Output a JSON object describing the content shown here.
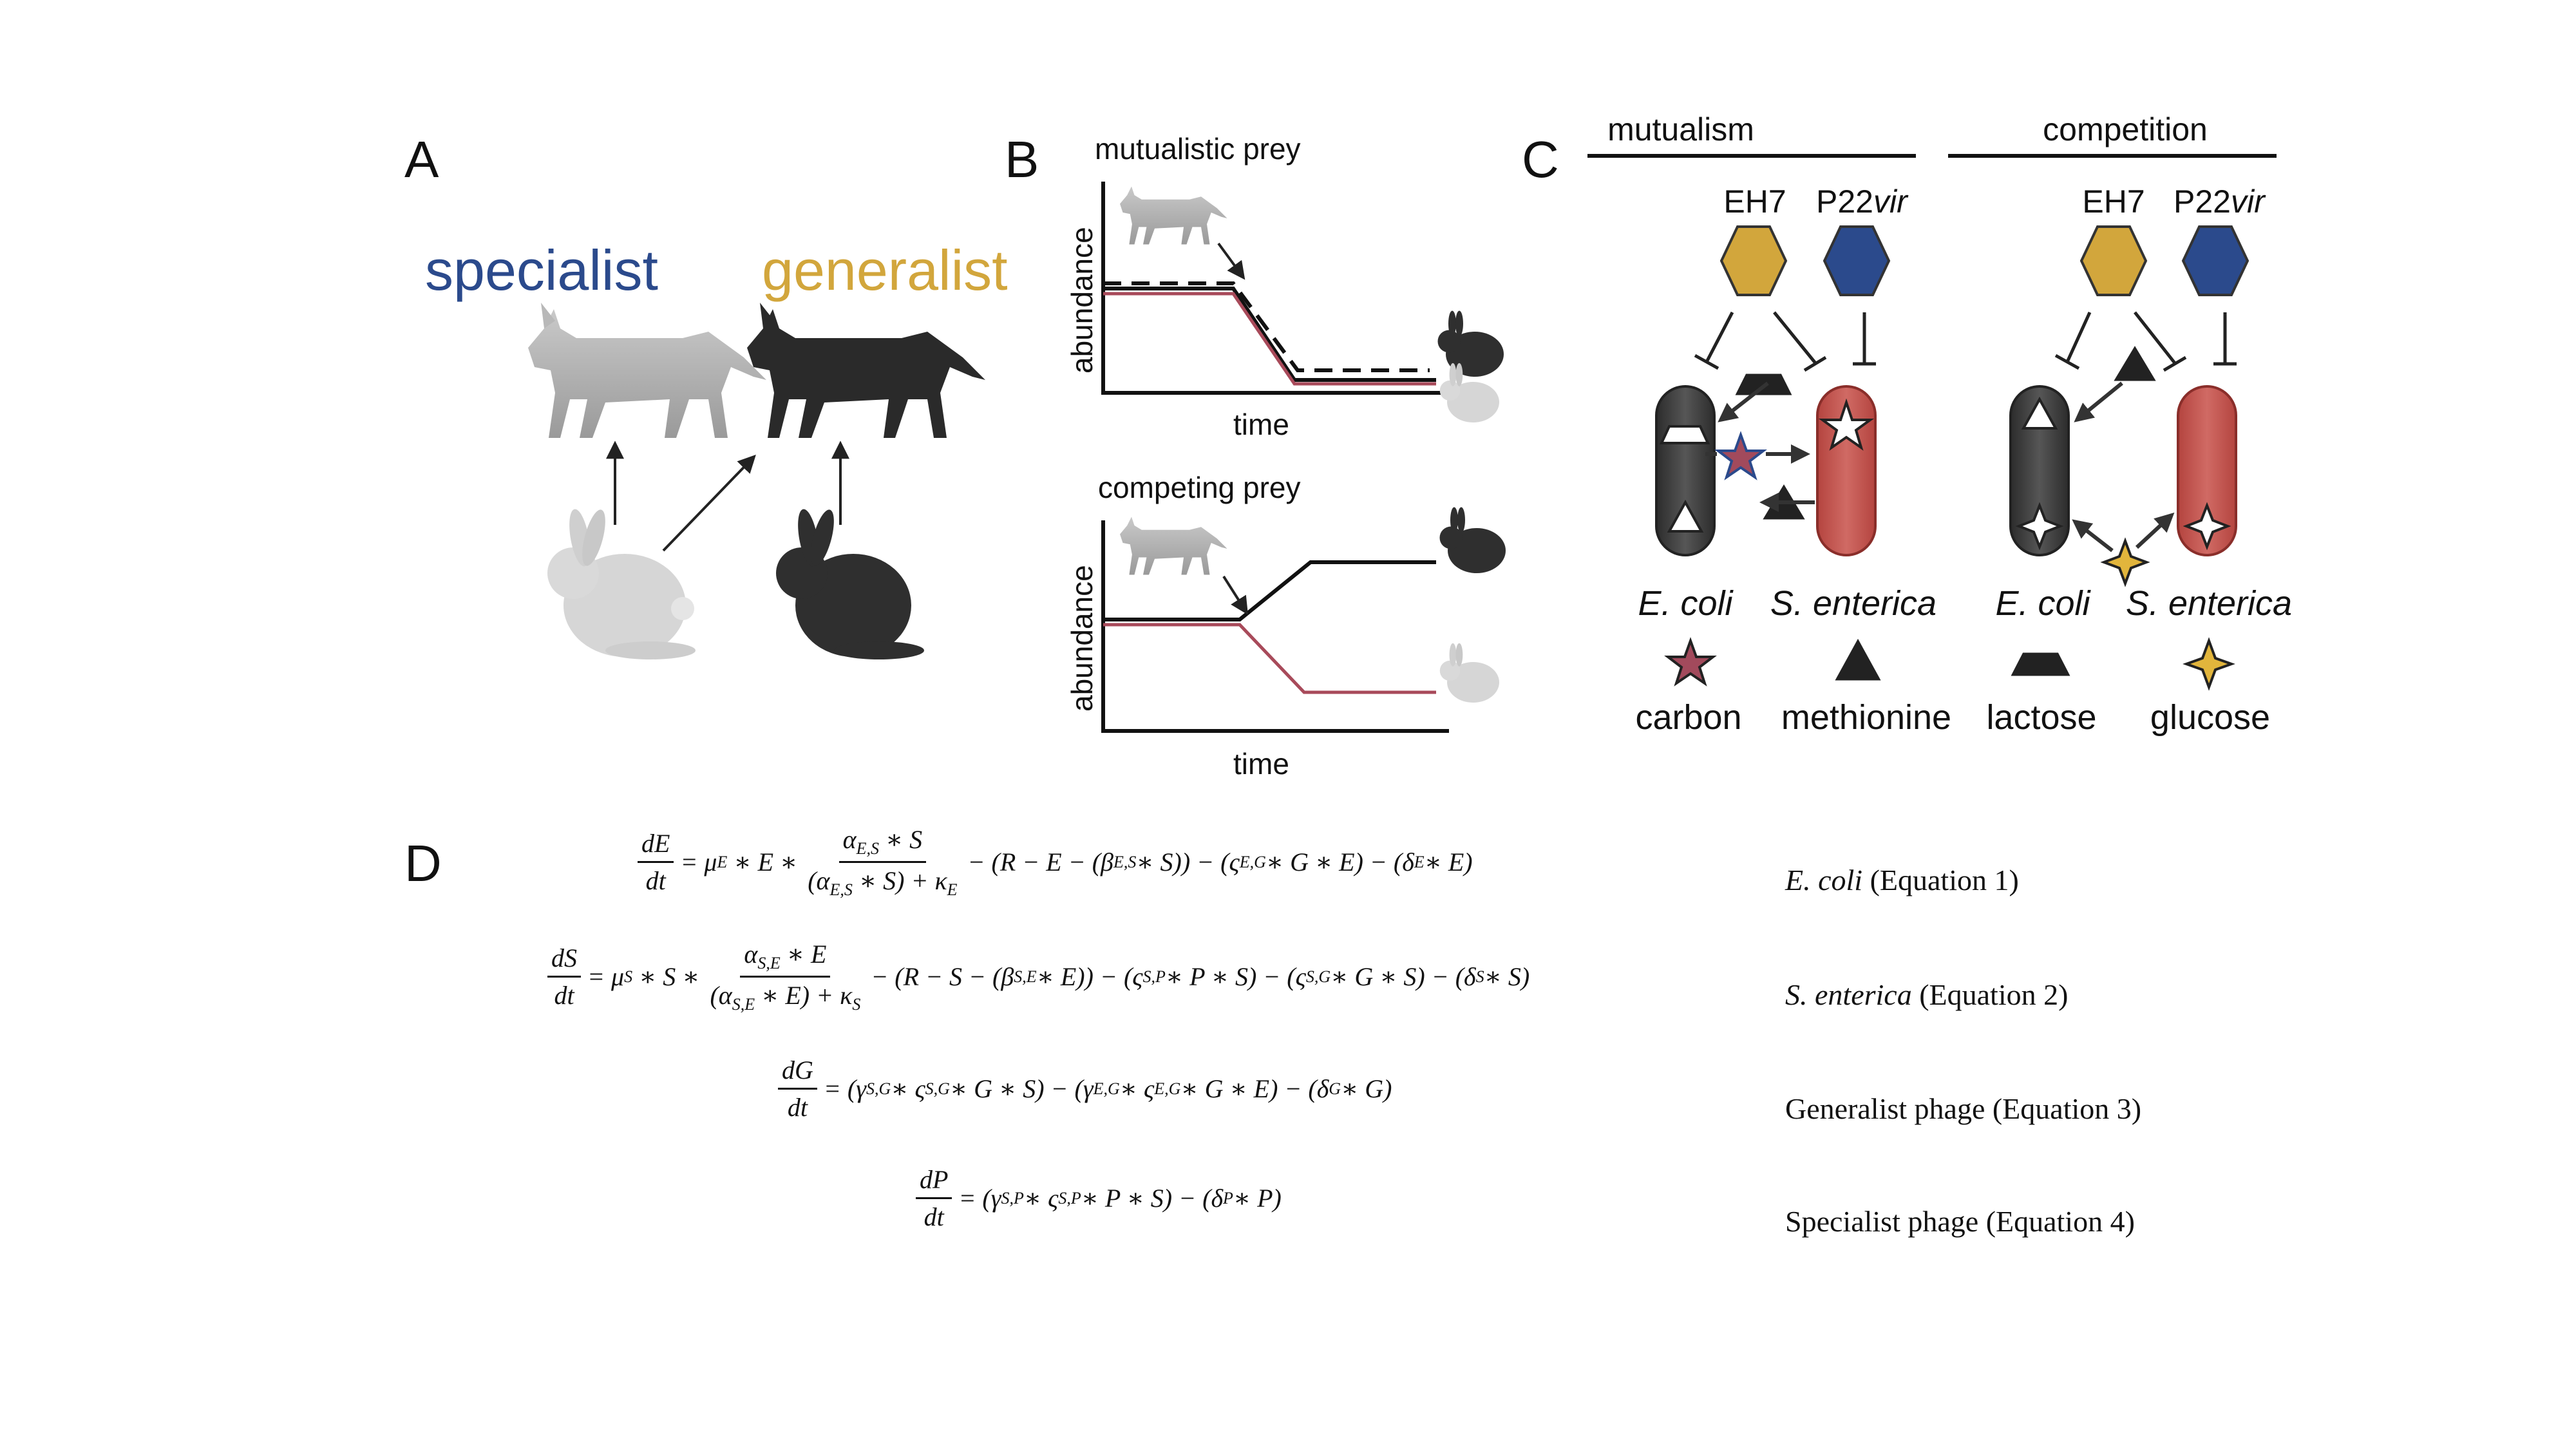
{
  "panels": {
    "a": "A",
    "b": "B",
    "c": "C",
    "d": "D"
  },
  "panel_a": {
    "specialist": "specialist",
    "generalist": "generalist"
  },
  "panel_b": {
    "top_title": "mutualistic prey",
    "bottom_title": "competing prey",
    "ylabel": "abundance",
    "xlabel": "time"
  },
  "panel_c": {
    "mutualism": "mutualism",
    "competition": "competition",
    "phage_generalist": "EH7",
    "phage_specialist_main": "P22",
    "phage_specialist_suffix": "vir",
    "ecoli": "E. coli",
    "senterica": "S. enterica",
    "legend": [
      {
        "label": "carbon",
        "icon": "star-icon"
      },
      {
        "label": "methionine",
        "icon": "triangle-icon"
      },
      {
        "label": "lactose",
        "icon": "trapezoid-icon"
      },
      {
        "label": "glucose",
        "icon": "four-point-star-icon"
      }
    ]
  },
  "colors": {
    "specialist": "#2b4a8c",
    "generalist": "#d2a63c",
    "ecoli": "#3e3e3e",
    "senterica": "#c0504d",
    "carbon": "#a24a5c",
    "glucose": "#e2b53c",
    "red_line": "#a84a5a"
  },
  "equations": [
    {
      "lhs_num": "dE",
      "lhs_den": "dt",
      "label_italic": "E. coli",
      "label_rest": " (Equation 1)",
      "t1": "= μ",
      "t1_sub": "E",
      "t2": "∗ E ∗",
      "frac_num": "α",
      "frac_num_sub": "E,S",
      "frac_num_rest": " ∗ S",
      "frac_den_a": "(α",
      "frac_den_sub": "E,S",
      "frac_den_b": " ∗ S) +  κ",
      "frac_den_sub2": "E",
      "rest": "− (R − E − (β",
      "rest_sub": "E,S",
      "rest2": " ∗ S)) − (ς",
      "rest2_sub": "E,G",
      "rest3": " ∗ G ∗ E) − (δ",
      "rest3_sub": "E",
      "rest4": " ∗ E)"
    },
    {
      "lhs_num": "dS",
      "lhs_den": "dt",
      "label_italic": "S. enterica",
      "label_rest": " (Equation 2)",
      "t1": "= μ",
      "t1_sub": "S",
      "t2": "∗ S ∗",
      "frac_num": "α",
      "frac_num_sub": "S,E",
      "frac_num_rest": " ∗ E",
      "frac_den_a": "(α",
      "frac_den_sub": "S,E",
      "frac_den_b": " ∗ E) +  κ",
      "frac_den_sub2": "S",
      "rest": "− (R − S − (β",
      "rest_sub": "S,E",
      "rest2": " ∗ E)) − (ς",
      "rest2_sub": "S,P",
      "rest3": " ∗ P ∗ S) − (ς",
      "rest3_sub": "S,G",
      "rest4": " ∗ G ∗ S) − (δ",
      "rest4_sub": "S",
      "rest5": " ∗ S)"
    },
    {
      "lhs_num": "dG",
      "lhs_den": "dt",
      "label_italic": "",
      "label_rest": "Generalist phage (Equation 3)",
      "body": "= (γ",
      "s1": "S,G",
      "b2": " ∗ ς",
      "s2": "S,G",
      "b3": "∗ G ∗ S) − (γ",
      "s3": "E,G",
      "b4": " ∗ ς",
      "s4": "E,G",
      "b5": "∗ G ∗ E) − (δ",
      "s5": "G",
      "b6": " ∗ G)"
    },
    {
      "lhs_num": "dP",
      "lhs_den": "dt",
      "label_italic": "",
      "label_rest": "Specialist phage (Equation 4)",
      "body": "= (γ",
      "s1": "S,P",
      "b2": " ∗ ς",
      "s2": "S,P",
      "b3": "∗ P ∗ S) − (δ",
      "s3": "P",
      "b4": " ∗ P)"
    }
  ]
}
